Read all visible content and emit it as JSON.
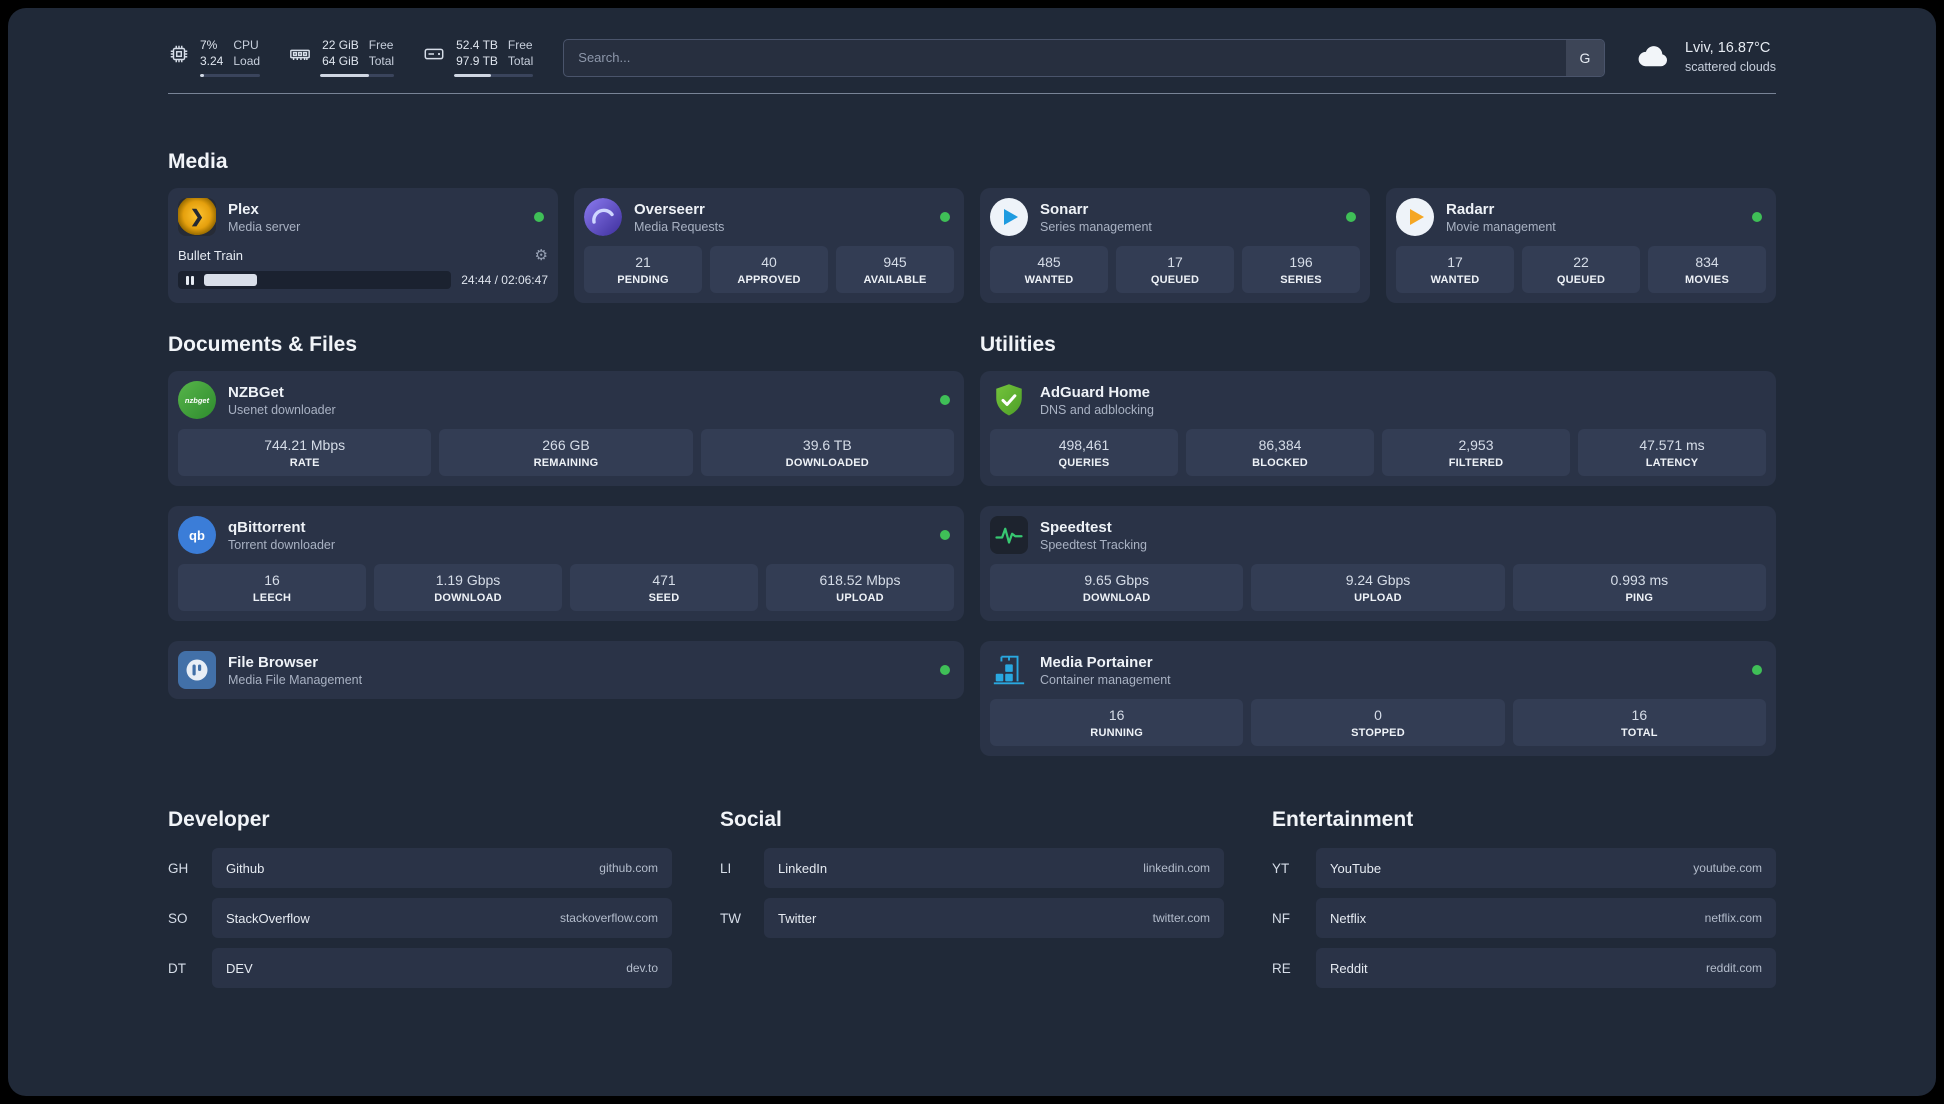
{
  "colors": {
    "online": "#3fbf57",
    "page_bg": "#202938",
    "card_bg": "#2a3347"
  },
  "topbar": {
    "cpu": {
      "value_top": "7%",
      "value_bottom": "3.24",
      "label_top": "CPU",
      "label_bottom": "Load",
      "progress_pct": 7
    },
    "ram": {
      "value_top": "22 GiB",
      "value_bottom": "64 GiB",
      "label_top": "Free",
      "label_bottom": "Total",
      "progress_pct": 66
    },
    "disk": {
      "value_top": "52.4 TB",
      "value_bottom": "97.9 TB",
      "label_top": "Free",
      "label_bottom": "Total",
      "progress_pct": 46
    },
    "search": {
      "placeholder": "Search...",
      "engine_button": "G"
    },
    "weather": {
      "location": "Lviv, 16.87°C",
      "condition": "scattered clouds"
    }
  },
  "icon_glyphs": {
    "plex": "❯",
    "nzbget": "nzbget",
    "qbittorrent": "qb",
    "gear": "⚙"
  },
  "media": {
    "title": "Media",
    "apps": [
      {
        "name": "Plex",
        "desc": "Media server",
        "player": {
          "track": "Bullet Train",
          "time": "24:44 / 02:06:47",
          "progress_pct": 19.5
        }
      },
      {
        "name": "Overseerr",
        "desc": "Media Requests",
        "stats": [
          {
            "value": "21",
            "label": "PENDING"
          },
          {
            "value": "40",
            "label": "APPROVED"
          },
          {
            "value": "945",
            "label": "AVAILABLE"
          }
        ]
      },
      {
        "name": "Sonarr",
        "desc": "Series management",
        "stats": [
          {
            "value": "485",
            "label": "WANTED"
          },
          {
            "value": "17",
            "label": "QUEUED"
          },
          {
            "value": "196",
            "label": "SERIES"
          }
        ]
      },
      {
        "name": "Radarr",
        "desc": "Movie management",
        "stats": [
          {
            "value": "17",
            "label": "WANTED"
          },
          {
            "value": "22",
            "label": "QUEUED"
          },
          {
            "value": "834",
            "label": "MOVIES"
          }
        ]
      }
    ]
  },
  "documents": {
    "title": "Documents & Files",
    "apps": [
      {
        "name": "NZBGet",
        "desc": "Usenet downloader",
        "stats": [
          {
            "value": "744.21 Mbps",
            "label": "RATE"
          },
          {
            "value": "266 GB",
            "label": "REMAINING"
          },
          {
            "value": "39.6 TB",
            "label": "DOWNLOADED"
          }
        ]
      },
      {
        "name": "qBittorrent",
        "desc": "Torrent downloader",
        "stats": [
          {
            "value": "16",
            "label": "LEECH"
          },
          {
            "value": "1.19 Gbps",
            "label": "DOWNLOAD"
          },
          {
            "value": "471",
            "label": "SEED"
          },
          {
            "value": "618.52 Mbps",
            "label": "UPLOAD"
          }
        ]
      },
      {
        "name": "File Browser",
        "desc": "Media File Management",
        "stats": []
      }
    ]
  },
  "utilities": {
    "title": "Utilities",
    "apps": [
      {
        "name": "AdGuard Home",
        "desc": "DNS and adblocking",
        "stats": [
          {
            "value": "498,461",
            "label": "QUERIES"
          },
          {
            "value": "86,384",
            "label": "BLOCKED"
          },
          {
            "value": "2,953",
            "label": "FILTERED"
          },
          {
            "value": "47.571 ms",
            "label": "LATENCY"
          }
        ]
      },
      {
        "name": "Speedtest",
        "desc": "Speedtest Tracking",
        "stats": [
          {
            "value": "9.65 Gbps",
            "label": "DOWNLOAD"
          },
          {
            "value": "9.24 Gbps",
            "label": "UPLOAD"
          },
          {
            "value": "0.993 ms",
            "label": "PING"
          }
        ]
      },
      {
        "name": "Media Portainer",
        "desc": "Container management",
        "stats": [
          {
            "value": "16",
            "label": "RUNNING"
          },
          {
            "value": "0",
            "label": "STOPPED"
          },
          {
            "value": "16",
            "label": "TOTAL"
          }
        ]
      }
    ]
  },
  "bookmarks": [
    {
      "title": "Developer",
      "items": [
        {
          "abbr": "GH",
          "name": "Github",
          "domain": "github.com"
        },
        {
          "abbr": "SO",
          "name": "StackOverflow",
          "domain": "stackoverflow.com"
        },
        {
          "abbr": "DT",
          "name": "DEV",
          "domain": "dev.to"
        }
      ]
    },
    {
      "title": "Social",
      "items": [
        {
          "abbr": "LI",
          "name": "LinkedIn",
          "domain": "linkedin.com"
        },
        {
          "abbr": "TW",
          "name": "Twitter",
          "domain": "twitter.com"
        }
      ]
    },
    {
      "title": "Entertainment",
      "items": [
        {
          "abbr": "YT",
          "name": "YouTube",
          "domain": "youtube.com"
        },
        {
          "abbr": "NF",
          "name": "Netflix",
          "domain": "netflix.com"
        },
        {
          "abbr": "RE",
          "name": "Reddit",
          "domain": "reddit.com"
        }
      ]
    }
  ]
}
